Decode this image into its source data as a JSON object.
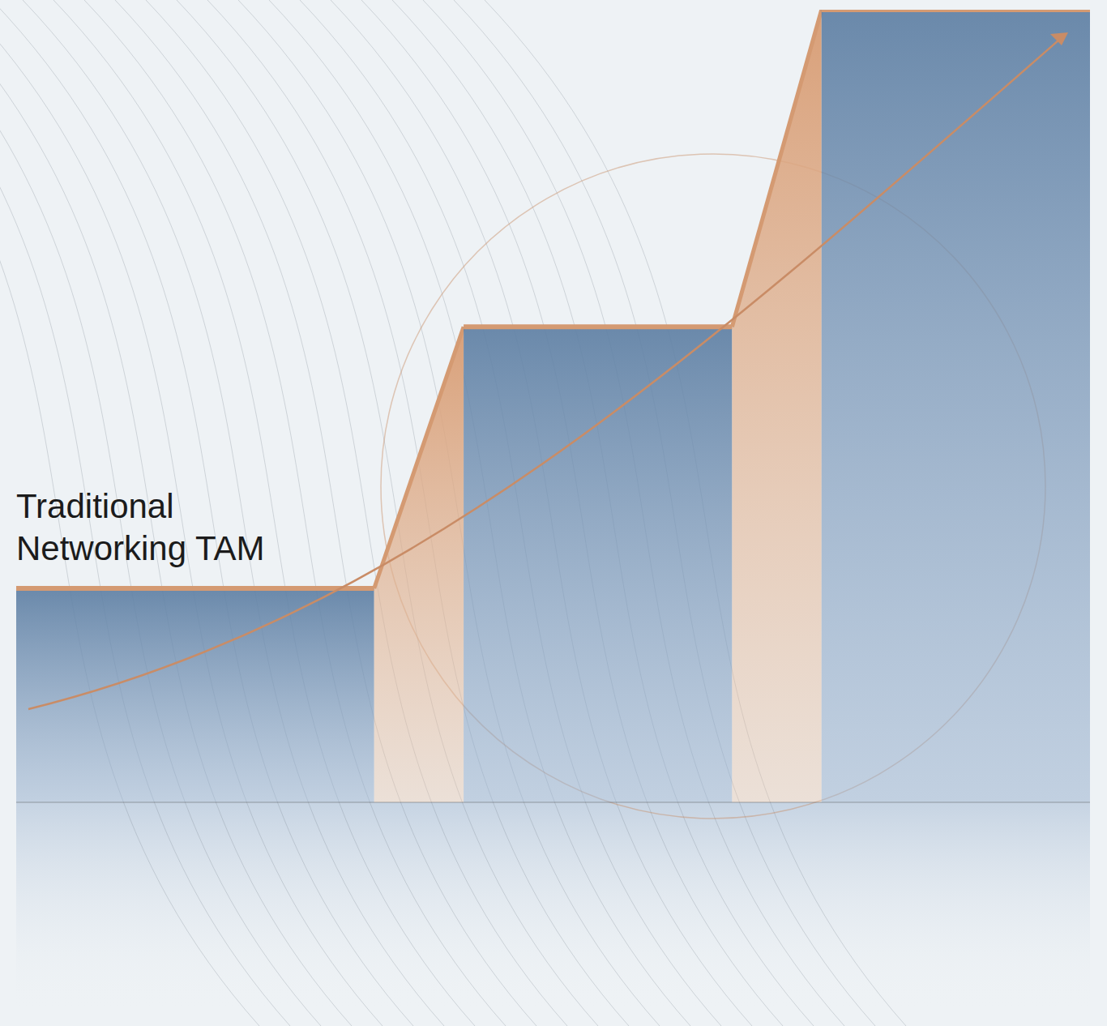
{
  "chart_data": {
    "type": "bar",
    "categories": [
      null,
      null,
      null
    ],
    "values": [
      27,
      60,
      100
    ],
    "color": "#5f80a4",
    "ylim": [
      0,
      100
    ],
    "grid": false,
    "tick_labels": false,
    "annotation": "Traditional Networking TAM"
  }
}
